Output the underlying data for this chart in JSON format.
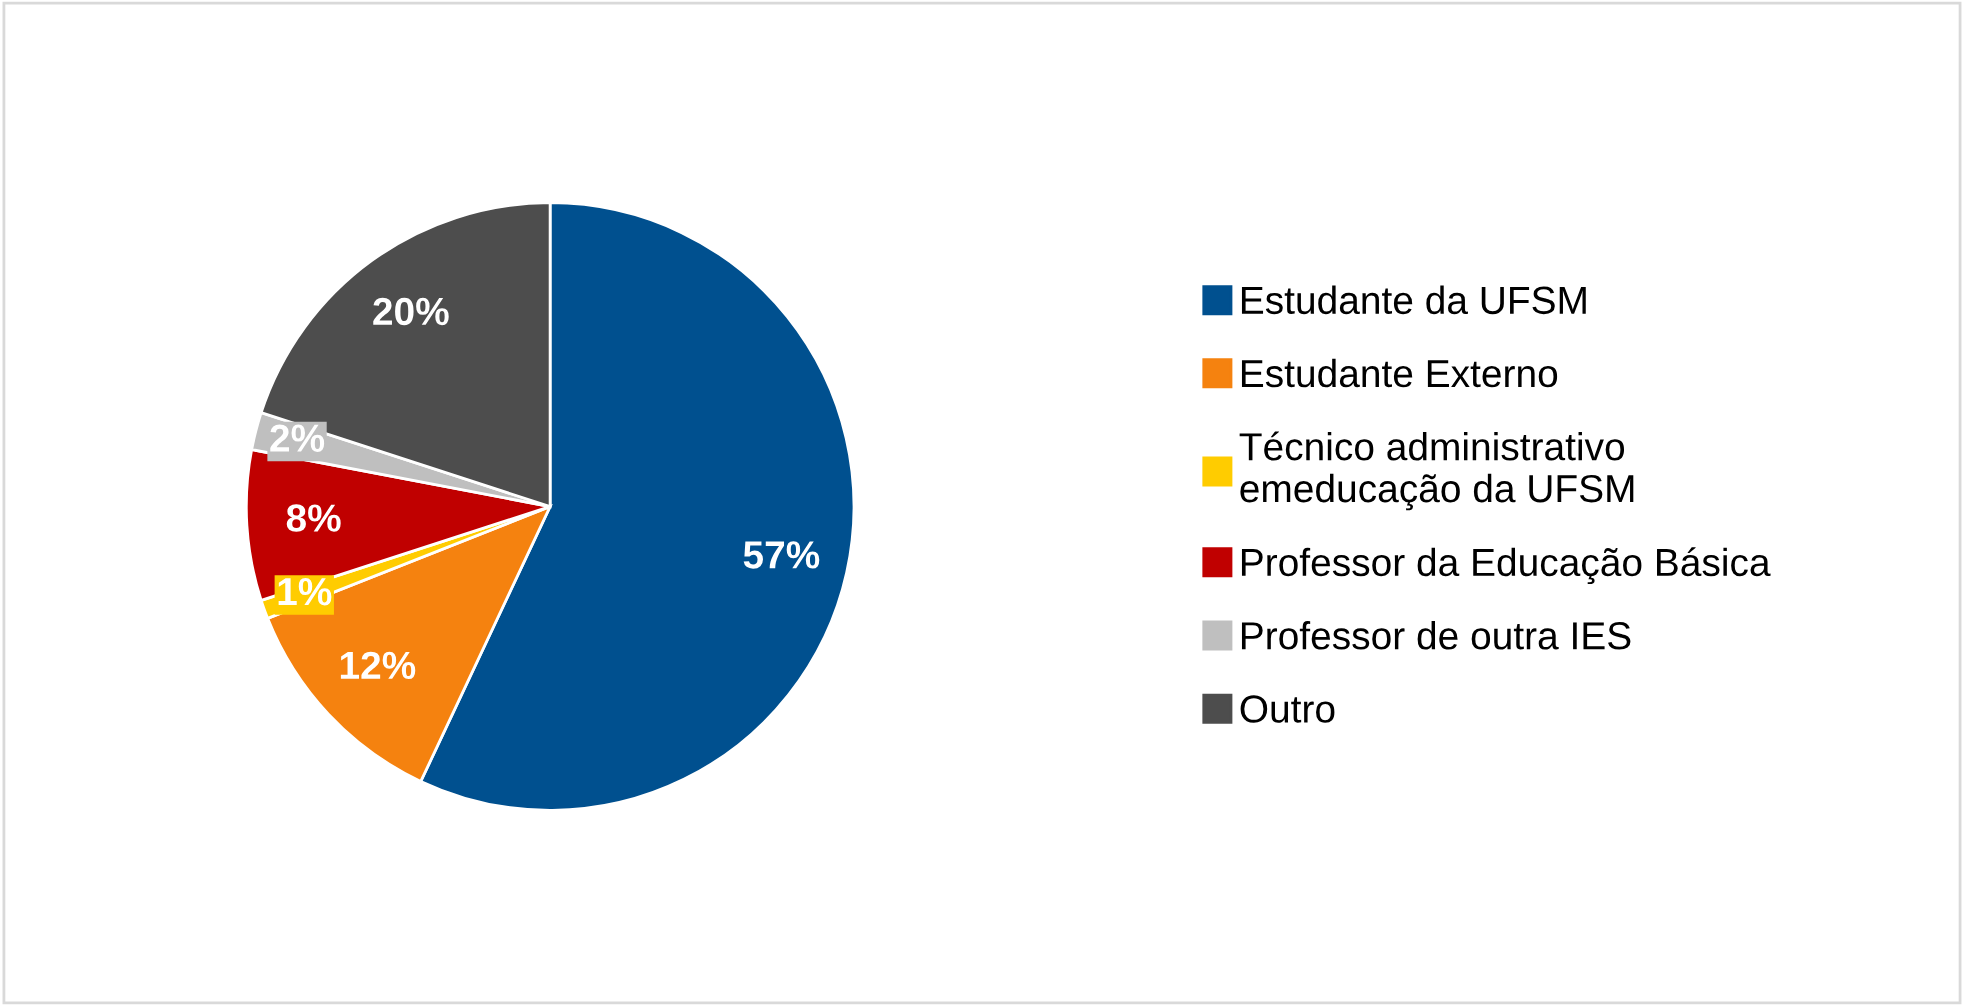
{
  "chart_data": {
    "type": "pie",
    "categories": [
      "Estudante da UFSM",
      "Estudante Externo",
      "Técnico administrativo\nemeducação da UFSM",
      "Professor da Educação Básica",
      "Professor de outra IES",
      "Outro"
    ],
    "values": [
      57,
      12,
      1,
      8,
      2,
      20
    ],
    "colors": [
      "#00508f",
      "#f5820f",
      "#ffcc00",
      "#c00000",
      "#bfbfbf",
      "#4d4d4d"
    ],
    "value_labels": [
      "57%",
      "12%",
      "1%",
      "8%",
      "2%",
      "20%"
    ],
    "legend": "right"
  }
}
